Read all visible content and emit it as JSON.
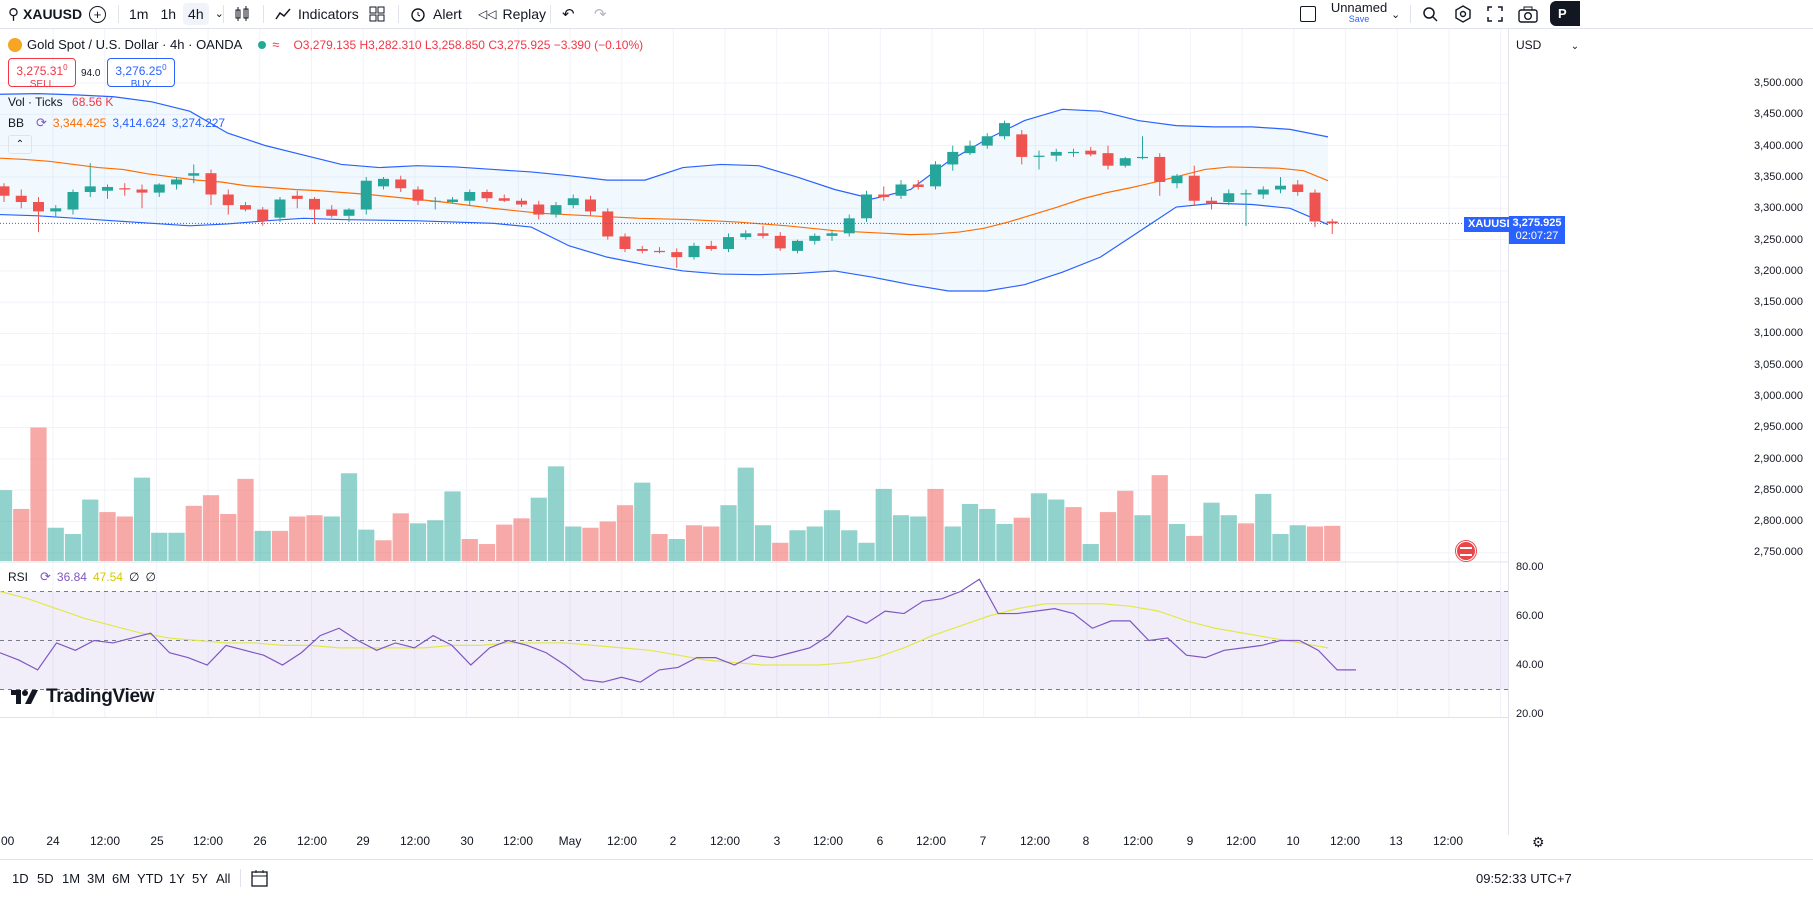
{
  "toolbar": {
    "symbol": "XAUUSD",
    "intervals": [
      "1m",
      "1h",
      "4h"
    ],
    "active_interval": "4h",
    "indicators_label": "Indicators",
    "alert_label": "Alert",
    "replay_label": "Replay",
    "layout_name": "Unnamed",
    "layout_save": "Save",
    "account_initial": "P"
  },
  "legend": {
    "title": "Gold Spot / U.S. Dollar · 4h · OANDA",
    "open": "O3,279.135",
    "high": "H3,282.310",
    "low": "L3,258.850",
    "close": "C3,275.925",
    "change": "−3.390 (−0.10%)",
    "sell_price": "3,275.31",
    "sell_sup": "0",
    "sell_label": "SELL",
    "spread": "94.0",
    "buy_price": "3,276.25",
    "buy_sup": "0",
    "buy_label": "BUY",
    "vol_label": "Vol · Ticks",
    "vol_value": "68.56 K",
    "bb_label": "BB",
    "bb_basis": "3,344.425",
    "bb_upper": "3,414.624",
    "bb_lower": "3,274.227",
    "rsi_label": "RSI",
    "rsi_value": "36.84",
    "rsi_ma": "47.54",
    "rsi_x1": "∅",
    "rsi_x2": "∅"
  },
  "price_axis": {
    "currency": "USD",
    "labels": [
      "3,500.000",
      "3,450.000",
      "3,400.000",
      "3,350.000",
      "3,300.000",
      "3,250.000",
      "3,200.000",
      "3,150.000",
      "3,100.000",
      "3,050.000",
      "3,000.000",
      "2,950.000",
      "2,900.000",
      "2,850.000",
      "2,800.000",
      "2,750.000"
    ],
    "last_symbol": "XAUUSD",
    "last_price": "3,275.925",
    "countdown": "02:07:27"
  },
  "rsi_axis": {
    "labels": [
      "80.00",
      "60.00",
      "40.00",
      "20.00"
    ]
  },
  "time_axis": {
    "labels": [
      ":00",
      "24",
      "12:00",
      "25",
      "12:00",
      "26",
      "12:00",
      "29",
      "12:00",
      "30",
      "12:00",
      "May",
      "12:00",
      "2",
      "12:00",
      "3",
      "12:00",
      "6",
      "12:00",
      "7",
      "12:00",
      "8",
      "12:00",
      "9",
      "12:00",
      "10",
      "12:00",
      "13",
      "12:00"
    ]
  },
  "bottom": {
    "ranges": [
      "1D",
      "5D",
      "1M",
      "3M",
      "6M",
      "YTD",
      "1Y",
      "5Y",
      "All"
    ],
    "clock": "09:52:33 UTC+7"
  },
  "watermark": "TradingView",
  "colors": {
    "up": "#26a69a",
    "down": "#ef5350",
    "bb_band": "#2962ff",
    "bb_basis": "#ff6d00",
    "rsi": "#7e57c2",
    "rsi_ma": "#e1e84a",
    "accent": "#2962ff"
  },
  "chart_data": {
    "type": "candlestick",
    "symbol": "XAUUSD",
    "interval": "4h",
    "candles": [
      [
        3335,
        3340,
        3310,
        3320
      ],
      [
        3320,
        3330,
        3300,
        3310
      ],
      [
        3310,
        3318,
        3262,
        3295
      ],
      [
        3295,
        3305,
        3285,
        3300
      ],
      [
        3298,
        3330,
        3290,
        3326
      ],
      [
        3326,
        3372,
        3318,
        3335
      ],
      [
        3328,
        3338,
        3315,
        3334
      ],
      [
        3332,
        3340,
        3320,
        3330
      ],
      [
        3330,
        3338,
        3300,
        3325
      ],
      [
        3325,
        3340,
        3318,
        3338
      ],
      [
        3338,
        3350,
        3330,
        3346
      ],
      [
        3352,
        3370,
        3340,
        3356
      ],
      [
        3356,
        3362,
        3305,
        3322
      ],
      [
        3322,
        3330,
        3290,
        3305
      ],
      [
        3305,
        3310,
        3295,
        3298
      ],
      [
        3298,
        3302,
        3272,
        3280
      ],
      [
        3285,
        3318,
        3278,
        3314
      ],
      [
        3320,
        3328,
        3300,
        3315
      ],
      [
        3315,
        3318,
        3275,
        3298
      ],
      [
        3298,
        3305,
        3285,
        3288
      ],
      [
        3288,
        3300,
        3278,
        3298
      ],
      [
        3298,
        3350,
        3290,
        3344
      ],
      [
        3335,
        3350,
        3330,
        3347
      ],
      [
        3346,
        3352,
        3326,
        3332
      ],
      [
        3330,
        3335,
        3305,
        3312
      ],
      [
        3312,
        3318,
        3298,
        3312
      ],
      [
        3310,
        3318,
        3308,
        3314
      ],
      [
        3312,
        3330,
        3305,
        3326
      ],
      [
        3326,
        3330,
        3310,
        3316
      ],
      [
        3316,
        3322,
        3310,
        3312
      ],
      [
        3312,
        3316,
        3302,
        3306
      ],
      [
        3306,
        3312,
        3282,
        3290
      ],
      [
        3290,
        3310,
        3285,
        3305
      ],
      [
        3305,
        3322,
        3300,
        3316
      ],
      [
        3314,
        3320,
        3288,
        3295
      ],
      [
        3295,
        3300,
        3250,
        3255
      ],
      [
        3255,
        3260,
        3230,
        3235
      ],
      [
        3235,
        3240,
        3228,
        3232
      ],
      [
        3232,
        3238,
        3228,
        3230
      ],
      [
        3230,
        3236,
        3205,
        3222
      ],
      [
        3222,
        3245,
        3218,
        3240
      ],
      [
        3240,
        3248,
        3232,
        3235
      ],
      [
        3235,
        3260,
        3230,
        3254
      ],
      [
        3254,
        3265,
        3250,
        3260
      ],
      [
        3260,
        3272,
        3252,
        3256
      ],
      [
        3256,
        3262,
        3232,
        3236
      ],
      [
        3232,
        3250,
        3228,
        3248
      ],
      [
        3248,
        3260,
        3242,
        3256
      ],
      [
        3256,
        3265,
        3248,
        3260
      ],
      [
        3260,
        3290,
        3255,
        3284
      ],
      [
        3284,
        3328,
        3278,
        3322
      ],
      [
        3322,
        3335,
        3312,
        3318
      ],
      [
        3320,
        3345,
        3315,
        3338
      ],
      [
        3338,
        3345,
        3330,
        3334
      ],
      [
        3335,
        3375,
        3330,
        3370
      ],
      [
        3370,
        3400,
        3360,
        3390
      ],
      [
        3388,
        3408,
        3385,
        3400
      ],
      [
        3400,
        3420,
        3395,
        3415
      ],
      [
        3415,
        3440,
        3410,
        3436
      ],
      [
        3418,
        3425,
        3370,
        3382
      ],
      [
        3382,
        3392,
        3362,
        3384
      ],
      [
        3384,
        3395,
        3375,
        3390
      ],
      [
        3388,
        3395,
        3382,
        3390
      ],
      [
        3392,
        3398,
        3383,
        3386
      ],
      [
        3388,
        3400,
        3362,
        3368
      ],
      [
        3368,
        3382,
        3365,
        3380
      ],
      [
        3380,
        3415,
        3378,
        3382
      ],
      [
        3382,
        3388,
        3320,
        3342
      ],
      [
        3340,
        3355,
        3332,
        3352
      ],
      [
        3352,
        3368,
        3305,
        3312
      ],
      [
        3312,
        3318,
        3298,
        3308
      ],
      [
        3310,
        3330,
        3305,
        3324
      ],
      [
        3322,
        3330,
        3272,
        3324
      ],
      [
        3322,
        3335,
        3315,
        3330
      ],
      [
        3330,
        3350,
        3324,
        3336
      ],
      [
        3338,
        3345,
        3320,
        3326
      ],
      [
        3325,
        3330,
        3270,
        3279
      ],
      [
        3279,
        3283,
        3259,
        3276
      ]
    ],
    "volume_up": [
      1,
      0,
      0,
      1,
      1,
      1,
      0,
      0,
      1,
      1,
      1,
      0,
      0,
      0,
      0,
      1,
      0,
      0,
      0,
      1,
      1,
      1,
      0,
      0,
      1,
      1,
      1,
      0,
      0,
      0,
      0,
      1,
      1,
      1,
      0,
      0,
      0,
      1,
      0,
      1,
      0,
      0,
      1,
      1,
      1,
      0,
      1,
      1,
      1,
      1,
      1,
      1,
      1,
      1,
      0,
      1,
      1,
      1,
      1,
      0,
      1,
      1,
      0,
      1,
      0,
      0,
      1,
      0,
      1,
      0,
      1,
      1,
      0,
      1,
      1,
      1,
      0,
      0
    ],
    "volume": [
      2850,
      2820,
      2950,
      2790,
      2780,
      2835,
      2815,
      2808,
      2870,
      2782,
      2782,
      2825,
      2842,
      2812,
      2868,
      2785,
      2785,
      2808,
      2810,
      2808,
      2877,
      2787,
      2770,
      2813,
      2797,
      2802,
      2848,
      2772,
      2764,
      2795,
      2805,
      2838,
      2888,
      2792,
      2790,
      2800,
      2826,
      2862,
      2780,
      2772,
      2794,
      2792,
      2826,
      2886,
      2794,
      2766,
      2786,
      2792,
      2818,
      2786,
      2766,
      2852,
      2810,
      2808,
      2852,
      2792,
      2828,
      2820,
      2796,
      2806,
      2845,
      2835,
      2823,
      2764,
      2815,
      2849,
      2810,
      2874,
      2796,
      2777,
      2830,
      2810,
      2797,
      2844,
      2780,
      2794,
      2792,
      2793
    ],
    "bb": {
      "basis": [
        3380,
        3378,
        3375,
        3370,
        3365,
        3362,
        3355,
        3350,
        3345,
        3342,
        3336,
        3333,
        3330,
        3328,
        3325,
        3322,
        3318,
        3314,
        3310,
        3305,
        3300,
        3296,
        3292,
        3290,
        3288,
        3286,
        3284,
        3283,
        3282,
        3280,
        3278,
        3275,
        3272,
        3268,
        3264,
        3262,
        3260,
        3258,
        3259,
        3262,
        3268,
        3278,
        3290,
        3302,
        3315,
        3325,
        3333,
        3342,
        3352,
        3362,
        3366,
        3365,
        3364,
        3360,
        3344
      ],
      "upper": [
        3482,
        3483,
        3481,
        3478,
        3470,
        3455,
        3420,
        3400,
        3385,
        3370,
        3365,
        3368,
        3366,
        3362,
        3358,
        3352,
        3345,
        3345,
        3365,
        3370,
        3368,
        3350,
        3330,
        3315,
        3330,
        3375,
        3410,
        3440,
        3458,
        3455,
        3440,
        3432,
        3430,
        3430,
        3426,
        3414
      ],
      "lower": [
        3290,
        3288,
        3284,
        3280,
        3276,
        3272,
        3275,
        3280,
        3284,
        3282,
        3281,
        3280,
        3278,
        3276,
        3270,
        3240,
        3222,
        3210,
        3200,
        3195,
        3194,
        3196,
        3200,
        3190,
        3178,
        3168,
        3168,
        3178,
        3198,
        3222,
        3262,
        3302,
        3308,
        3306,
        3300,
        3274
      ]
    },
    "rsi": [
      45,
      42,
      38,
      49,
      46,
      50,
      49,
      51,
      53,
      45,
      43,
      40,
      48,
      46,
      44,
      40,
      45,
      52,
      55,
      50,
      46,
      49,
      47,
      52,
      48,
      40,
      47,
      50,
      48,
      45,
      40,
      34,
      33,
      35,
      33,
      38,
      39,
      43,
      43,
      40,
      44,
      43,
      45,
      47,
      52,
      60,
      57,
      62,
      61,
      66,
      67,
      70,
      75,
      61,
      61,
      62,
      63,
      61,
      55,
      58,
      58,
      50,
      51,
      44,
      43,
      46,
      47,
      48,
      50,
      50,
      46,
      38,
      38
    ],
    "rsi_ma": [
      70,
      67,
      63,
      59,
      56,
      53,
      51,
      50,
      49,
      49,
      48,
      48,
      47,
      47,
      47,
      47,
      48,
      48,
      49,
      49,
      49,
      48,
      47,
      46,
      44,
      42,
      41,
      40,
      40,
      40,
      41,
      43,
      47,
      52,
      56,
      60,
      63,
      65,
      65,
      65,
      64,
      62,
      58,
      55,
      53,
      51,
      49,
      47
    ],
    "rsi_levels": [
      70,
      50,
      30
    ],
    "y_range": [
      2700,
      3550
    ]
  }
}
